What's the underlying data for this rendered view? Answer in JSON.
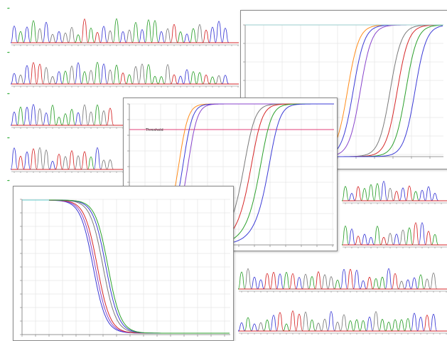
{
  "colors": {
    "trace_a": "#2ca02c",
    "trace_c": "#3b3bd6",
    "trace_g": "#7a7a7a",
    "trace_t": "#d62728",
    "axis": "#777777",
    "grid": "#dcdcdc",
    "threshold": "#e0407a",
    "orange": "#ff8c1a",
    "purple": "#8844cc",
    "teal": "#1aa3a3",
    "arrow": "#3cb043"
  },
  "chromatograms": [
    {
      "tag": "",
      "sample": ""
    },
    {
      "tag": "",
      "sample": ""
    },
    {
      "tag": "",
      "sample": ""
    },
    {
      "tag": "",
      "sample": ""
    },
    {
      "tag": "",
      "sample": ""
    }
  ],
  "amplification": {
    "threshold_label": "Threshold",
    "axis_label": "Cycle"
  },
  "melt": {
    "ylim": [
      0,
      100
    ]
  }
}
